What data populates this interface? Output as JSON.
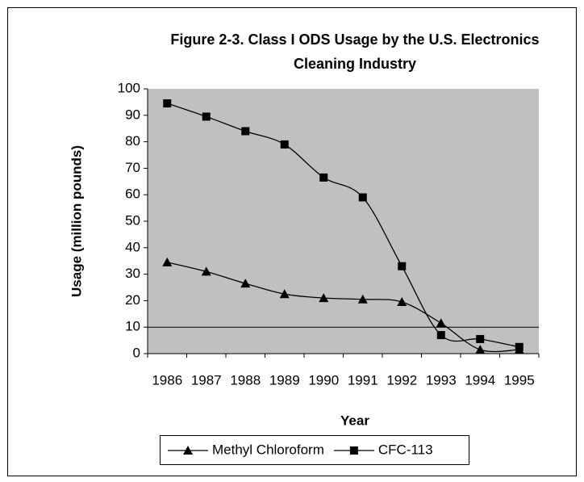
{
  "chart_data": {
    "type": "line",
    "title": [
      "Figure 2-3. Class I ODS Usage by the U.S. Electronics",
      "Cleaning Industry"
    ],
    "x_label": "Year",
    "y_label": "Usage (million pounds)",
    "categories": [
      "1986",
      "1987",
      "1988",
      "1989",
      "1990",
      "1991",
      "1992",
      "1993",
      "1994",
      "1995"
    ],
    "series": [
      {
        "name": "Methyl Chloroform",
        "color": "#000000",
        "marker": "triangle",
        "values": [
          34.5,
          31,
          26.5,
          22.5,
          21,
          20.5,
          19.5,
          11.5,
          1.5,
          1.5
        ]
      },
      {
        "name": "CFC-113",
        "color": "#000000",
        "marker": "square",
        "values": [
          94.5,
          89.5,
          84,
          79,
          66.5,
          59,
          33,
          7,
          5.5,
          2.5
        ]
      }
    ],
    "ylim": [
      0,
      100
    ],
    "yticks": [
      0,
      10,
      20,
      30,
      40,
      50,
      60,
      70,
      80,
      90,
      100
    ],
    "ygrid": [
      10
    ],
    "plot_background": "#c0c0c0",
    "smooth": true,
    "legend": "bottom"
  }
}
